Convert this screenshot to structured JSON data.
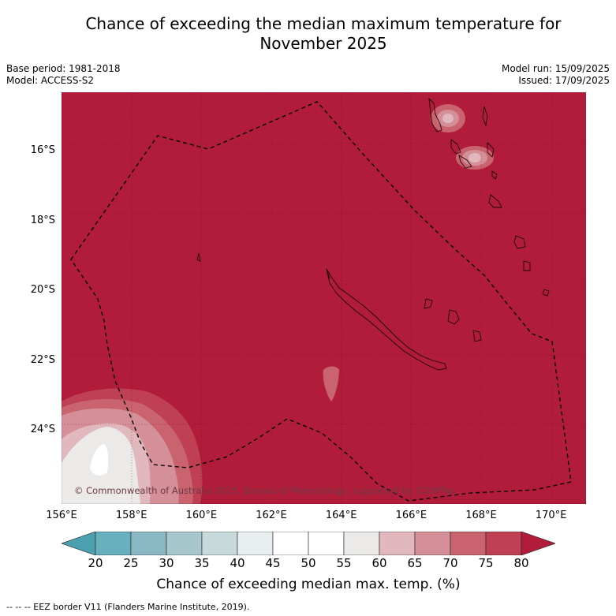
{
  "title": "Chance of exceeding the median maximum temperature for November 2025",
  "title_line1": "Chance of exceeding the median maximum temperature for",
  "title_line2": "November 2025",
  "base_period": "Base period: 1981-2018",
  "model": "Model: ACCESS-S2",
  "model_run": "Model run: 15/09/2025",
  "issued": "Issued: 17/09/2025",
  "copyright": "© Commonwealth of Australia 2025, Bureau of Meteorology, supported by COSPPac",
  "footnote": "--  --  -- EEZ border V11 (Flanders Marine Institute, 2019).",
  "colors": {
    "background_hot": "#b11c3a",
    "cool_end": "#4c9fae"
  },
  "chart_data": {
    "type": "heatmap",
    "xlabel": "",
    "ylabel": "",
    "lon_range": [
      156,
      171
    ],
    "lat_range": [
      -26.1,
      -14.3
    ],
    "lon_ticks": [
      "156°E",
      "158°E",
      "160°E",
      "162°E",
      "164°E",
      "166°E",
      "168°E",
      "170°E"
    ],
    "lat_ticks": [
      "16°S",
      "18°S",
      "20°S",
      "22°S",
      "24°S"
    ],
    "lat_tick_values": [
      -16,
      -18,
      -20,
      -22,
      -24
    ],
    "lon_tick_values": [
      156,
      158,
      160,
      162,
      164,
      166,
      168,
      170
    ],
    "grid": true,
    "dominant_value_range": "80+",
    "colorbar": {
      "title": "Chance of exceeding median max. temp. (%)",
      "ticks": [
        "20",
        "25",
        "30",
        "35",
        "40",
        "45",
        "50",
        "55",
        "60",
        "65",
        "70",
        "75",
        "80"
      ],
      "bins": [
        {
          "from": 20,
          "to": 25,
          "color": "#68b0bd"
        },
        {
          "from": 25,
          "to": 30,
          "color": "#8ab8c2"
        },
        {
          "from": 30,
          "to": 35,
          "color": "#a8c7cc"
        },
        {
          "from": 35,
          "to": 40,
          "color": "#c8d9db"
        },
        {
          "from": 40,
          "to": 45,
          "color": "#e9eff0"
        },
        {
          "from": 45,
          "to": 50,
          "color": "#ffffff"
        },
        {
          "from": 50,
          "to": 55,
          "color": "#ffffff"
        },
        {
          "from": 55,
          "to": 60,
          "color": "#ebeae8"
        },
        {
          "from": 60,
          "to": 65,
          "color": "#e0b8bd"
        },
        {
          "from": 65,
          "to": 70,
          "color": "#d48f98"
        },
        {
          "from": 70,
          "to": 75,
          "color": "#c9646f"
        },
        {
          "from": 75,
          "to": 80,
          "color": "#be4052"
        }
      ],
      "extend_low_color": "#4c9fae",
      "extend_high_color": "#b11c3a"
    }
  }
}
